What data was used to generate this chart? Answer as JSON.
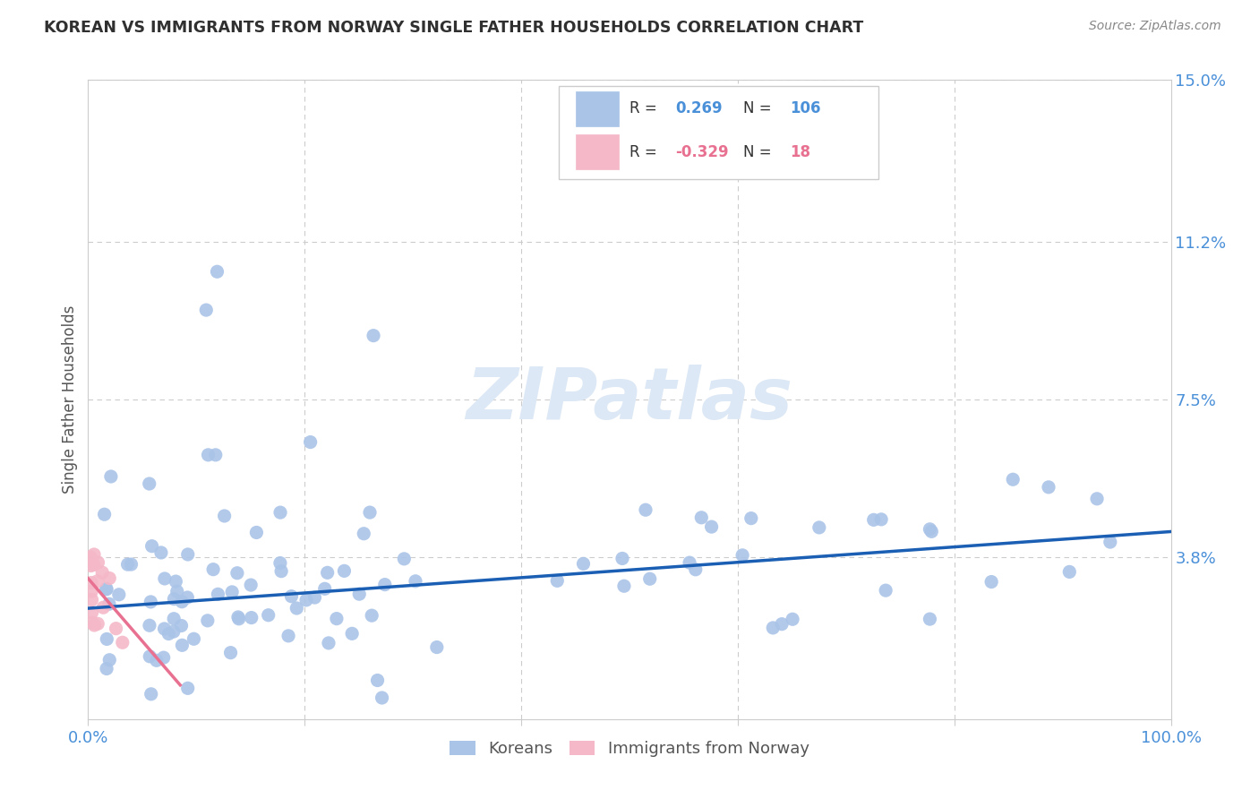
{
  "title": "KOREAN VS IMMIGRANTS FROM NORWAY SINGLE FATHER HOUSEHOLDS CORRELATION CHART",
  "source": "Source: ZipAtlas.com",
  "ylabel": "Single Father Households",
  "xlim": [
    0,
    1.0
  ],
  "ylim": [
    0,
    0.15
  ],
  "ytick_positions": [
    0.038,
    0.075,
    0.112,
    0.15
  ],
  "ytick_labels": [
    "3.8%",
    "7.5%",
    "11.2%",
    "15.0%"
  ],
  "legend_label1": "Koreans",
  "legend_label2": "Immigrants from Norway",
  "r1": "0.269",
  "n1": "106",
  "r2": "-0.329",
  "n2": "18",
  "blue_scatter_color": "#aac4e8",
  "pink_scatter_color": "#f4b8c8",
  "blue_line_color": "#1a5fb4",
  "pink_line_color": "#e87090",
  "title_color": "#303030",
  "axis_label_color": "#555555",
  "tick_color_right": "#4a90d9",
  "tick_color_x": "#4a90d9",
  "watermark_color": "#dce8f5",
  "background_color": "#ffffff",
  "grid_color": "#cccccc",
  "legend_edge_color": "#cccccc",
  "source_color": "#888888"
}
